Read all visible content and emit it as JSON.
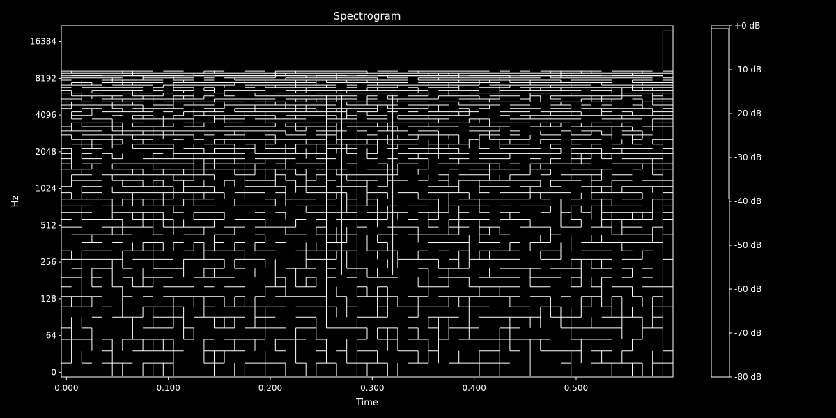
{
  "chart_data": {
    "type": "heatmap",
    "title": "Spectrogram",
    "xlabel": "Time",
    "ylabel": "Hz",
    "x_tick_labels": [
      "0.000",
      "0.100",
      "0.200",
      "0.300",
      "0.400",
      "0.500"
    ],
    "x_ticks": [
      0.0,
      0.1,
      0.2,
      0.3,
      0.4,
      0.5
    ],
    "xlim": [
      -0.005,
      0.595
    ],
    "y_scale": "symlog",
    "y_tick_labels": [
      "0",
      "64",
      "128",
      "256",
      "512",
      "1024",
      "2048",
      "4096",
      "8192",
      "16384"
    ],
    "y_ticks": [
      0,
      64,
      128,
      256,
      512,
      1024,
      2048,
      4096,
      8192,
      16384
    ],
    "ylim": [
      -8,
      22050
    ],
    "colorbar": {
      "tick_labels": [
        "+0 dB",
        "-10 dB",
        "-20 dB",
        "-30 dB",
        "-40 dB",
        "-50 dB",
        "-60 dB",
        "-70 dB",
        "-80 dB"
      ],
      "values": [
        0,
        -10,
        -20,
        -30,
        -40,
        -50,
        -60,
        -70,
        -80
      ],
      "range": [
        -80,
        0
      ]
    },
    "style": {
      "background": "#000000",
      "foreground": "#ffffff",
      "rendering": "contour edges only"
    },
    "grid": false
  }
}
